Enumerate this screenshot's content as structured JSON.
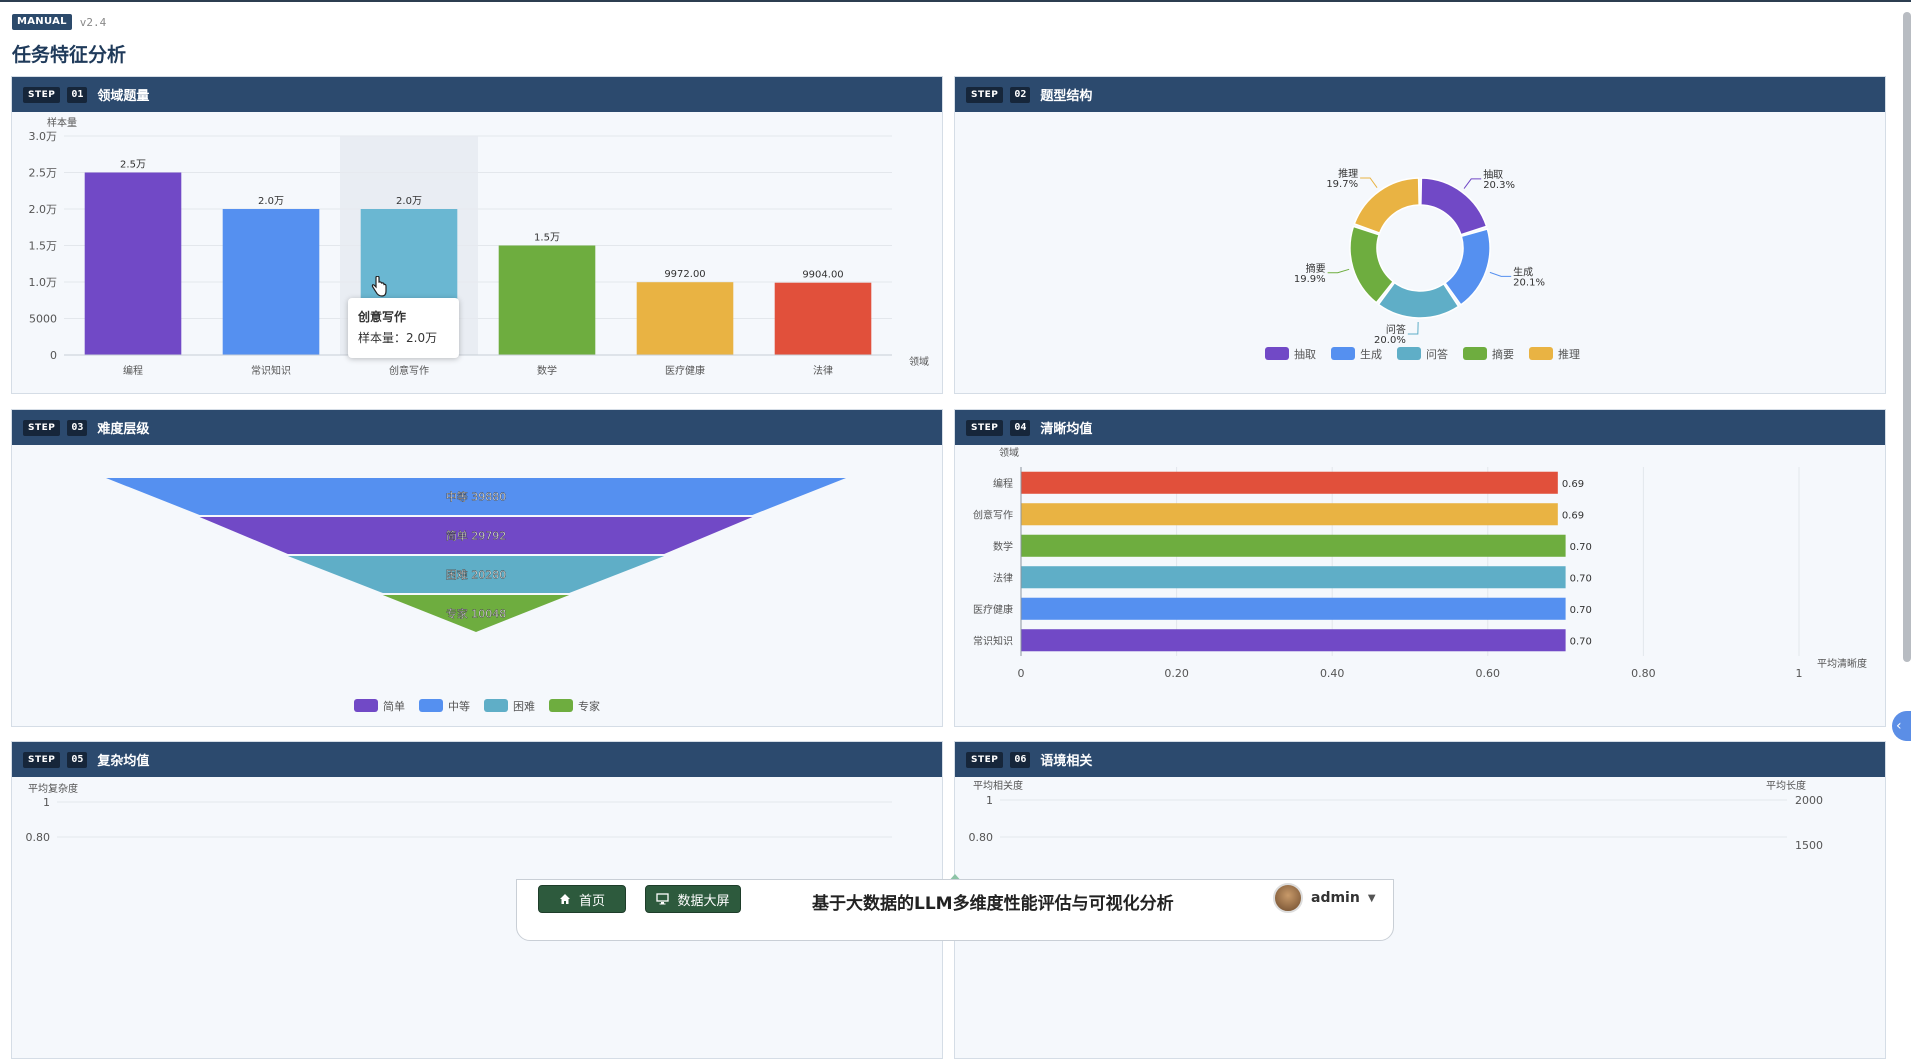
{
  "header": {
    "badge": "MANUAL",
    "version": "v2.4",
    "title": "任务特征分析"
  },
  "panels": [
    {
      "step_tag": "STEP",
      "num": "01",
      "title": "领域题量"
    },
    {
      "step_tag": "STEP",
      "num": "02",
      "title": "题型结构"
    },
    {
      "step_tag": "STEP",
      "num": "03",
      "title": "难度层级"
    },
    {
      "step_tag": "STEP",
      "num": "04",
      "title": "清晰均值"
    },
    {
      "step_tag": "STEP",
      "num": "05",
      "title": "复杂均值"
    },
    {
      "step_tag": "STEP",
      "num": "06",
      "title": "语境相关"
    }
  ],
  "tooltip": {
    "title": "创意写作",
    "body": "样本量：2.0万"
  },
  "chart_data": [
    {
      "type": "bar",
      "ylabel": "样本量",
      "xlabel": "领域",
      "categories": [
        "编程",
        "常识知识",
        "创意写作",
        "数学",
        "医疗健康",
        "法律"
      ],
      "values": [
        25000,
        20000,
        20000,
        15000,
        9972,
        9904
      ],
      "value_labels": [
        "2.5万",
        "2.0万",
        "2.0万",
        "1.5万",
        "9972.00",
        "9904.00"
      ],
      "yticks": [
        "0",
        "5000",
        "1.0万",
        "1.5万",
        "2.0万",
        "2.5万",
        "3.0万"
      ],
      "ylim": [
        0,
        30000
      ],
      "colors": [
        "#7149c6",
        "#5590f0",
        "#6ab7d2",
        "#6ead3f",
        "#e9b343",
        "#e1503b"
      ]
    },
    {
      "type": "pie",
      "categories": [
        "抽取",
        "生成",
        "问答",
        "摘要",
        "推理"
      ],
      "values": [
        20.3,
        20.1,
        20.0,
        19.9,
        19.7
      ],
      "value_labels": [
        "20.3%",
        "20.1%",
        "20.0%",
        "19.9%",
        "19.7%"
      ],
      "legend": "bottom",
      "colors": [
        "#7149c6",
        "#5590f0",
        "#5faec7",
        "#6ead3f",
        "#e9b343"
      ]
    },
    {
      "type": "funnel",
      "categories": [
        "中等",
        "简单",
        "困难",
        "专家"
      ],
      "values": [
        39880,
        29792,
        20280,
        10048
      ],
      "legend_order": [
        "简单",
        "中等",
        "困难",
        "专家"
      ],
      "legend": "bottom",
      "colors": {
        "简单": "#7149c6",
        "中等": "#5590f0",
        "困难": "#5faec7",
        "专家": "#6ead3f"
      }
    },
    {
      "type": "bar",
      "orientation": "horizontal",
      "ylabel": "领域",
      "xlabel": "平均清晰度",
      "categories": [
        "编程",
        "创意写作",
        "数学",
        "法律",
        "医疗健康",
        "常识知识"
      ],
      "values": [
        0.69,
        0.69,
        0.7,
        0.7,
        0.7,
        0.7
      ],
      "value_labels": [
        "0.69",
        "0.69",
        "0.70",
        "0.70",
        "0.70",
        "0.70"
      ],
      "xticks": [
        "0",
        "0.20",
        "0.40",
        "0.60",
        "0.80",
        "1"
      ],
      "xlim": [
        0,
        1
      ],
      "colors": [
        "#e1503b",
        "#e9b343",
        "#6ead3f",
        "#5faec7",
        "#5590f0",
        "#7149c6"
      ]
    },
    {
      "type": "line",
      "ylabel": "平均复杂度",
      "yticks": [
        "1",
        "0.80"
      ],
      "ylim": [
        0,
        1
      ]
    },
    {
      "type": "line",
      "ylabel": "平均相关度",
      "y2label": "平均长度",
      "yticks": [
        "1",
        "0.80"
      ],
      "y2ticks": [
        "2000",
        "1500"
      ]
    }
  ],
  "bottom_bar": {
    "home": "首页",
    "dashboard": "数据大屏",
    "title": "基于大数据的LLM多维度性能评估与可视化分析",
    "user": "admin"
  }
}
